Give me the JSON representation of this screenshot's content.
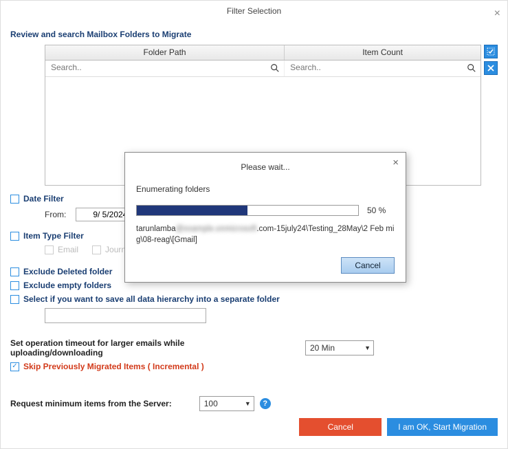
{
  "window": {
    "title": "Filter Selection"
  },
  "heading": "Review and search Mailbox Folders to Migrate",
  "grid": {
    "col_folder": "Folder Path",
    "col_count": "Item Count",
    "search_placeholder": "Search.."
  },
  "date_filter": {
    "label": "Date Filter",
    "from_label": "From:",
    "from_value": "9/ 5/2024"
  },
  "item_type_filter": {
    "label": "Item Type Filter",
    "opt_email": "Email",
    "opt_journal": "Journal"
  },
  "exclude_deleted": "Exclude Deleted folder",
  "exclude_empty": "Exclude empty folders",
  "separate_folder": "Select if you want to save all data hierarchy into a separate folder",
  "timeout": {
    "label": "Set operation timeout for larger emails while uploading/downloading",
    "value": "20 Min"
  },
  "skip_label": "Skip Previously Migrated Items ( Incremental )",
  "request_min": {
    "label": "Request minimum items from the Server:",
    "value": "100"
  },
  "buttons": {
    "cancel": "Cancel",
    "start": "I am OK, Start Migration"
  },
  "modal": {
    "title": "Please wait...",
    "status": "Enumerating folders",
    "percent_value": 50,
    "percent_label": "50 %",
    "path_prefix": "tarunlamba",
    "path_rest": ".com-15july24\\Testing_28May\\2 Feb mig\\08-reag\\[Gmail]",
    "cancel": "Cancel",
    "progress_fill_color": "#20377a",
    "progress_border": "#999999"
  },
  "colors": {
    "accent": "#2b8de0",
    "danger": "#e44f2f",
    "heading": "#1a3e72",
    "skip": "#d23a1a"
  }
}
